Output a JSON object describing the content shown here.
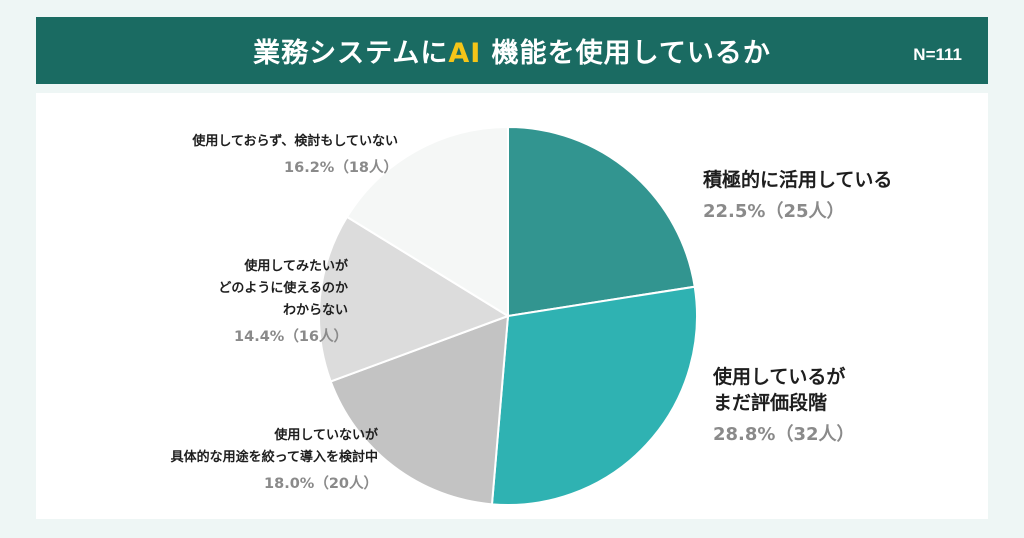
{
  "header": {
    "title_part1": "業務システムに",
    "title_accent": "AI",
    "title_part2": " 機能を使用しているか",
    "n_label": "N=111"
  },
  "colors": {
    "header_bg": "#1a6b62",
    "accent": "#f5c518",
    "slice_colors": [
      "#329590",
      "#2fb2b2",
      "#c3c3c3",
      "#dcdcdc",
      "#f5f7f6"
    ]
  },
  "chart_data": {
    "type": "pie",
    "title": "業務システムにAI 機能を使用しているか",
    "n": 111,
    "slices": [
      {
        "label_lines": [
          "積極的に活用している"
        ],
        "value": 22.5,
        "count": 25,
        "value_label": "22.5%（25人）"
      },
      {
        "label_lines": [
          "使用しているが",
          "まだ評価段階"
        ],
        "value": 28.8,
        "count": 32,
        "value_label": "28.8%（32人）"
      },
      {
        "label_lines": [
          "使用していないが",
          "具体的な用途を絞って導入を検討中"
        ],
        "value": 18.0,
        "count": 20,
        "value_label": "18.0%（20人）"
      },
      {
        "label_lines": [
          "使用してみたいが",
          "どのように使えるのか",
          "わからない"
        ],
        "value": 14.4,
        "count": 16,
        "value_label": "14.4%（16人）"
      },
      {
        "label_lines": [
          "使用しておらず、検討もしていない"
        ],
        "value": 16.2,
        "count": 18,
        "value_label": "16.2%（18人）"
      }
    ]
  }
}
